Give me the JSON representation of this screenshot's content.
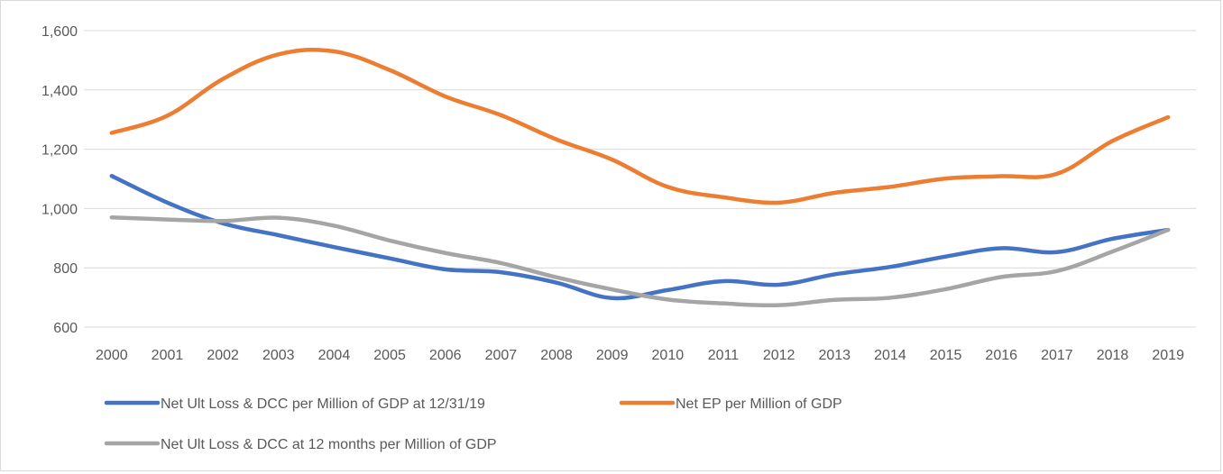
{
  "chart_data": {
    "type": "line",
    "title": "",
    "xlabel": "",
    "ylabel": "",
    "ylim": [
      600,
      1600
    ],
    "yticks": [
      600,
      800,
      1000,
      1200,
      1400,
      1600
    ],
    "ytick_labels": [
      "600",
      "800",
      "1,000",
      "1,200",
      "1,400",
      "1,600"
    ],
    "grid": true,
    "legend_position": "bottom",
    "categories": [
      "2000",
      "2001",
      "2002",
      "2003",
      "2004",
      "2005",
      "2006",
      "2007",
      "2008",
      "2009",
      "2010",
      "2011",
      "2012",
      "2013",
      "2014",
      "2015",
      "2016",
      "2017",
      "2018",
      "2019"
    ],
    "series": [
      {
        "name": "Net Ult Loss & DCC per Million of GDP at 12/31/19",
        "color": "#4472c4",
        "values": [
          1110,
          1020,
          950,
          910,
          870,
          832,
          795,
          785,
          750,
          698,
          725,
          755,
          743,
          778,
          803,
          838,
          866,
          853,
          898,
          928
        ]
      },
      {
        "name": "Net EP per Million of GDP",
        "color": "#ed7d31",
        "values": [
          1255,
          1313,
          1437,
          1520,
          1530,
          1467,
          1378,
          1315,
          1233,
          1165,
          1073,
          1038,
          1020,
          1053,
          1073,
          1101,
          1109,
          1117,
          1228,
          1308
        ]
      },
      {
        "name": "Net Ult Loss & DCC at 12 months per Million of GDP",
        "color": "#a5a5a5",
        "values": [
          970,
          963,
          958,
          969,
          942,
          892,
          850,
          816,
          768,
          727,
          693,
          680,
          674,
          692,
          699,
          728,
          769,
          789,
          855,
          928
        ]
      }
    ]
  }
}
